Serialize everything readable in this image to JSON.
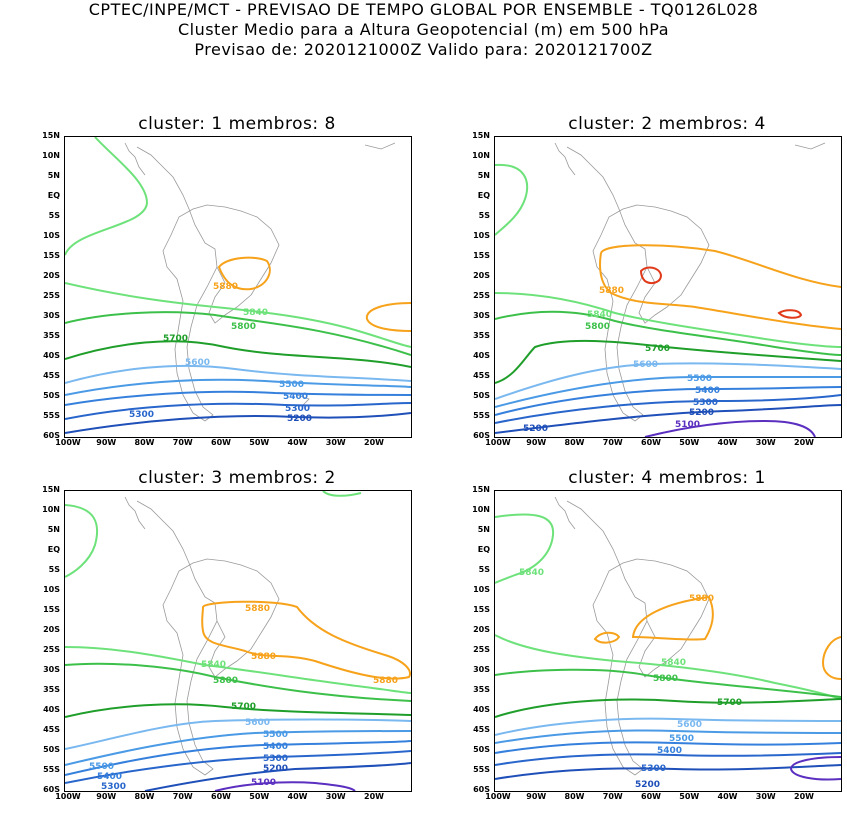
{
  "header": {
    "line1": "CPTEC/INPE/MCT - PREVISAO DE TEMPO GLOBAL POR ENSEMBLE - TQ0126L028",
    "line2": "Cluster Medio para a Altura Geopotencial (m) em 500 hPa",
    "line3": "Previsao de: 2020121000Z    Valido para: 2020121700Z"
  },
  "axes": {
    "lat_labels": [
      "15N",
      "10N",
      "5N",
      "EQ",
      "5S",
      "10S",
      "15S",
      "20S",
      "25S",
      "30S",
      "35S",
      "40S",
      "45S",
      "50S",
      "55S",
      "60S"
    ],
    "lon_labels": [
      "100W",
      "90W",
      "80W",
      "70W",
      "60W",
      "50W",
      "40W",
      "30W",
      "20W"
    ]
  },
  "colors": {
    "c5100": "#5b2fbf",
    "c5200": "#1f4fb8",
    "c5300": "#2866cc",
    "c5400": "#3580dc",
    "c5500": "#4a9ae6",
    "c5600": "#7ab8f0",
    "c5700": "#1f9e2a",
    "c5800": "#3cc04a",
    "c5840": "#6ee27a",
    "c5880": "#f7a21b",
    "c5920": "#e03a1a",
    "coast": "#9a9a9a"
  },
  "panels": [
    {
      "title": "cluster: 1   membros: 8",
      "labels": [
        "5880",
        "5840",
        "5800",
        "5700",
        "5600",
        "5500",
        "5400",
        "5300",
        "5300",
        "5200"
      ]
    },
    {
      "title": "cluster: 2   membros: 4",
      "labels": [
        "5880",
        "5840",
        "5800",
        "5700",
        "5600",
        "5500",
        "5400",
        "5300",
        "5200",
        "5200",
        "5100"
      ]
    },
    {
      "title": "cluster: 3   membros: 2",
      "labels": [
        "5880",
        "5880",
        "5880",
        "5840",
        "5800",
        "5700",
        "5600",
        "5500",
        "5500",
        "5400",
        "5400",
        "5300",
        "5300",
        "5200",
        "5100"
      ]
    },
    {
      "title": "cluster: 4   membros: 1",
      "labels": [
        "5840",
        "5880",
        "5840",
        "5800",
        "5700",
        "5600",
        "5500",
        "5400",
        "5300",
        "5200"
      ]
    }
  ]
}
